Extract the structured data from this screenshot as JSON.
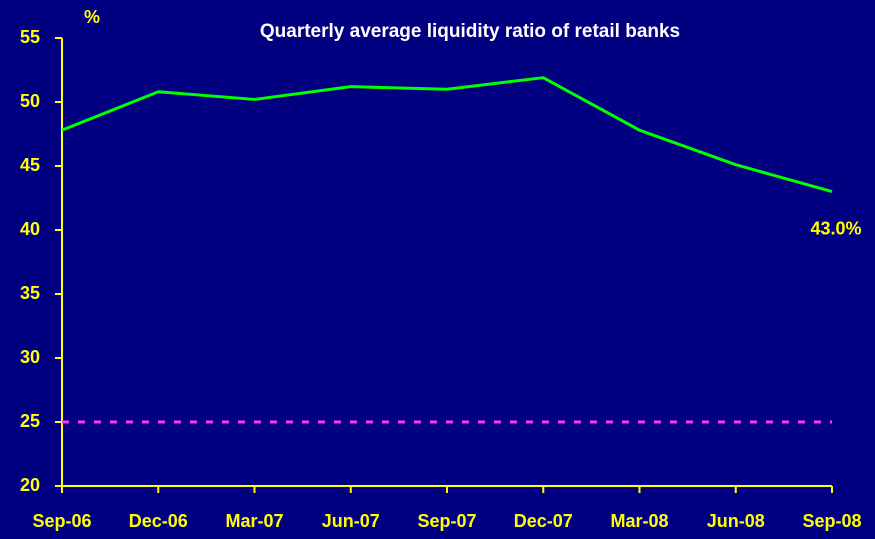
{
  "chart_data": {
    "type": "line",
    "title": "Quarterly average liquidity ratio of retail banks",
    "y_label": "%",
    "categories": [
      "Sep-06",
      "Dec-06",
      "Mar-07",
      "Jun-07",
      "Sep-07",
      "Dec-07",
      "Mar-08",
      "Jun-08",
      "Sep-08"
    ],
    "series": [
      {
        "color": "#00ff00",
        "values": [
          47.8,
          50.8,
          50.2,
          51.2,
          51.0,
          51.9,
          47.8,
          45.1,
          43.0
        ],
        "value_labels": [
          null,
          null,
          null,
          null,
          null,
          null,
          null,
          null,
          "43.0%"
        ]
      }
    ],
    "reference_line": {
      "value": 25,
      "color": "#ff33ff"
    },
    "ylim": [
      20,
      55
    ],
    "yticks": [
      20,
      25,
      30,
      35,
      40,
      45,
      50,
      55
    ],
    "axis_color": "#ffff00",
    "label_color": "#ffff00",
    "title_color": "#ffffff",
    "background": "#000080"
  }
}
